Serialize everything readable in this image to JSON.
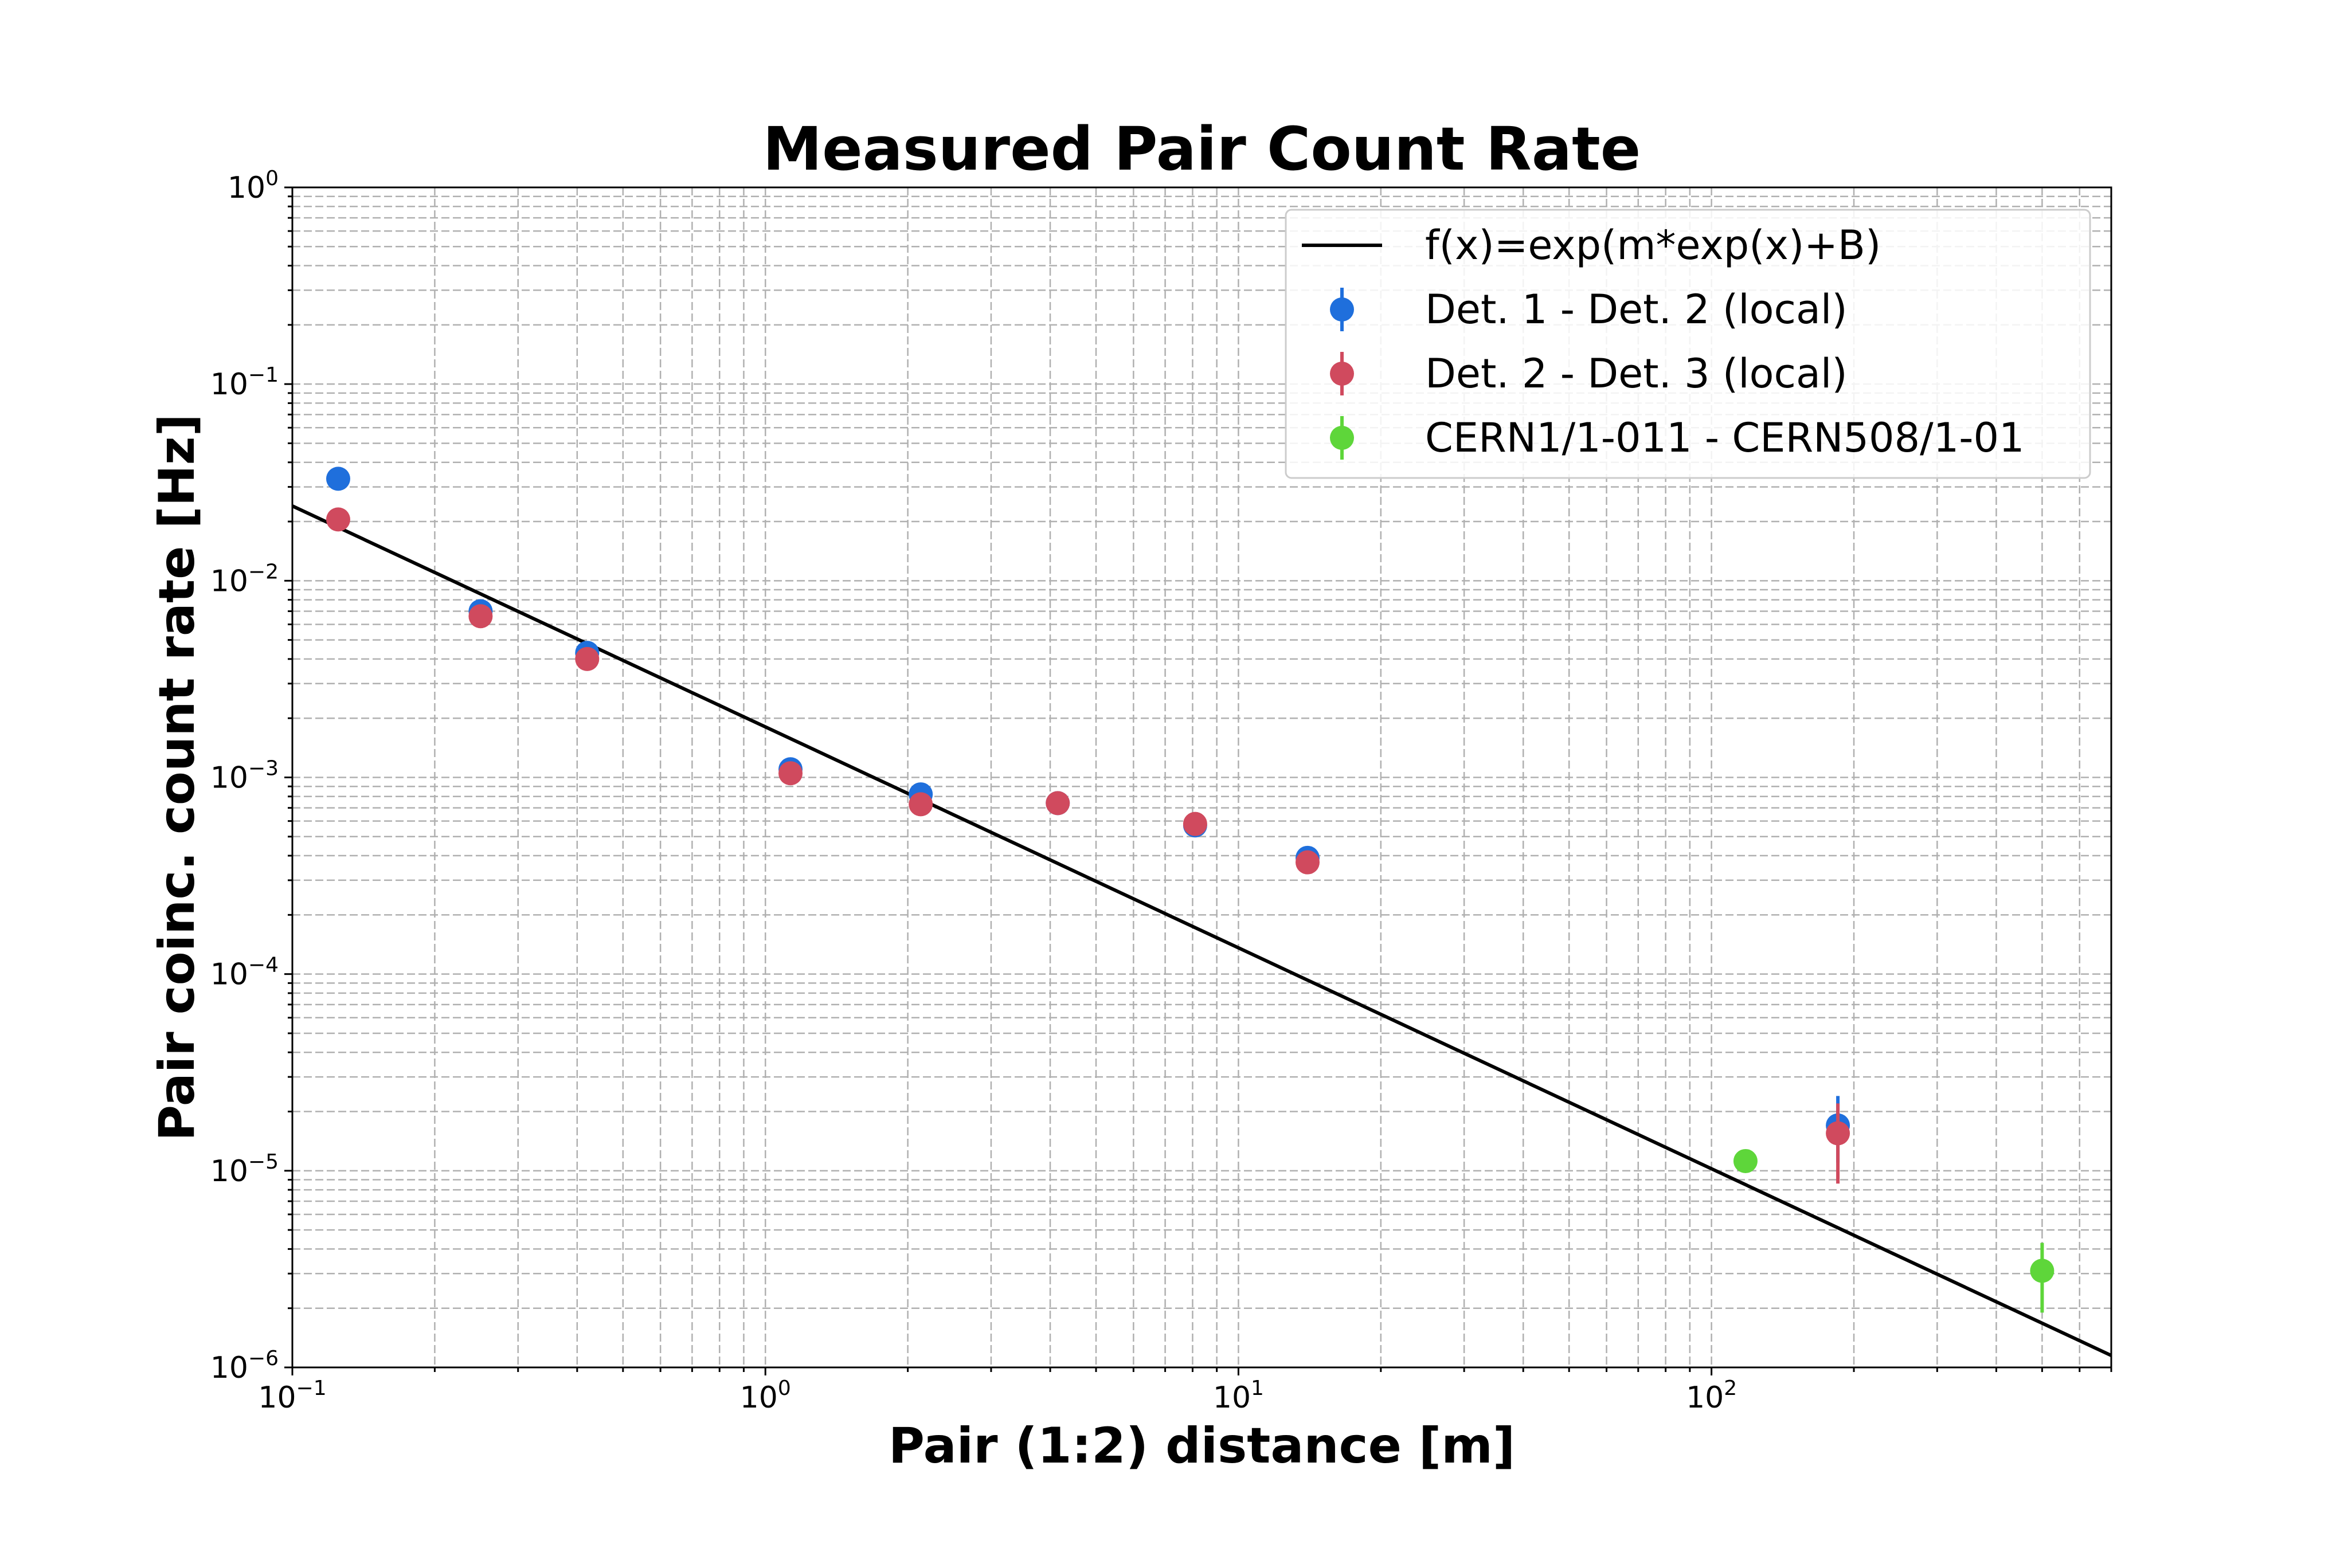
{
  "chart_data": {
    "type": "scatter",
    "title": "Measured Pair Count Rate",
    "xlabel": "Pair (1:2) distance [m]",
    "ylabel": "Pair coinc. count rate [Hz]",
    "xscale": "log",
    "yscale": "log",
    "xlim": [
      0.1,
      700
    ],
    "ylim": [
      1e-06,
      1
    ],
    "grid": "major and minor, dashed",
    "legend_position": "top-right",
    "x_ticks": [
      {
        "value": 0.1,
        "base": "10",
        "exp": "−1"
      },
      {
        "value": 1,
        "base": "10",
        "exp": "0"
      },
      {
        "value": 10,
        "base": "10",
        "exp": "1"
      },
      {
        "value": 100,
        "base": "10",
        "exp": "2"
      }
    ],
    "y_ticks": [
      {
        "value": 1e-06,
        "base": "10",
        "exp": "−6"
      },
      {
        "value": 1e-05,
        "base": "10",
        "exp": "−5"
      },
      {
        "value": 0.0001,
        "base": "10",
        "exp": "−4"
      },
      {
        "value": 0.001,
        "base": "10",
        "exp": "−3"
      },
      {
        "value": 0.01,
        "base": "10",
        "exp": "−2"
      },
      {
        "value": 0.1,
        "base": "10",
        "exp": "−1"
      },
      {
        "value": 1,
        "base": "10",
        "exp": "0"
      }
    ],
    "fit": {
      "name": "f(x)=exp(m*exp(x)+B)",
      "color": "#000000",
      "points": [
        {
          "x": 0.1,
          "y": 0.024
        },
        {
          "x": 700,
          "y": 1.15e-06
        }
      ]
    },
    "series": [
      {
        "name": "Det. 1 - Det. 2 (local)",
        "color": "#1f6fdc",
        "points": [
          {
            "x": 0.125,
            "y": 0.033,
            "lo": 0.033,
            "hi": 0.033
          },
          {
            "x": 0.25,
            "y": 0.007,
            "lo": 0.007,
            "hi": 0.007
          },
          {
            "x": 0.42,
            "y": 0.0043,
            "lo": 0.0043,
            "hi": 0.0043
          },
          {
            "x": 1.13,
            "y": 0.0011,
            "lo": 0.0011,
            "hi": 0.0011
          },
          {
            "x": 2.13,
            "y": 0.00082,
            "lo": 0.00082,
            "hi": 0.00082
          },
          {
            "x": 4.15,
            "y": 0.00074,
            "lo": 0.00074,
            "hi": 0.00074
          },
          {
            "x": 8.1,
            "y": 0.00057,
            "lo": 0.00057,
            "hi": 0.00057
          },
          {
            "x": 14,
            "y": 0.00039,
            "lo": 0.00039,
            "hi": 0.00039
          },
          {
            "x": 185,
            "y": 1.7e-05,
            "lo": 1.1e-05,
            "hi": 2.4e-05
          }
        ]
      },
      {
        "name": "Det. 2 - Det. 3 (local)",
        "color": "#d04a5e",
        "points": [
          {
            "x": 0.125,
            "y": 0.0205,
            "lo": 0.0205,
            "hi": 0.0205
          },
          {
            "x": 0.25,
            "y": 0.0066,
            "lo": 0.0066,
            "hi": 0.0066
          },
          {
            "x": 0.42,
            "y": 0.004,
            "lo": 0.004,
            "hi": 0.004
          },
          {
            "x": 1.13,
            "y": 0.00105,
            "lo": 0.00105,
            "hi": 0.00105
          },
          {
            "x": 2.13,
            "y": 0.00073,
            "lo": 0.00073,
            "hi": 0.00073
          },
          {
            "x": 4.15,
            "y": 0.00074,
            "lo": 0.00074,
            "hi": 0.00074
          },
          {
            "x": 8.1,
            "y": 0.00058,
            "lo": 0.00058,
            "hi": 0.00058
          },
          {
            "x": 14,
            "y": 0.00037,
            "lo": 0.00037,
            "hi": 0.00037
          },
          {
            "x": 185,
            "y": 1.55e-05,
            "lo": 8.6e-06,
            "hi": 2.2e-05
          }
        ]
      },
      {
        "name": "CERN1/1-011 - CERN508/1-01",
        "color": "#5ed63a",
        "points": [
          {
            "x": 118,
            "y": 1.12e-05,
            "lo": 1.12e-05,
            "hi": 1.12e-05
          },
          {
            "x": 500,
            "y": 3.1e-06,
            "lo": 1.9e-06,
            "hi": 4.3e-06
          }
        ]
      }
    ]
  }
}
